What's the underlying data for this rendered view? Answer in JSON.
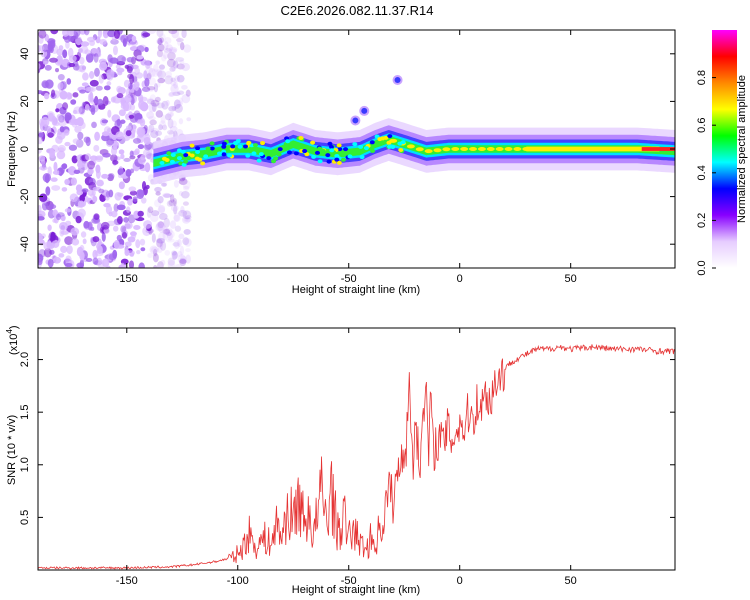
{
  "title": "C2E6.2026.082.11.37.R14",
  "colors": {
    "snr_line": "#e53333",
    "axis": "#000000",
    "background": "#ffffff"
  },
  "chart_data": [
    {
      "type": "heatmap",
      "title": "C2E6.2026.082.11.37.R14",
      "xlabel": "Height of straight line (km)",
      "ylabel": "Frequency (Hz)",
      "xlim": [
        -190,
        97
      ],
      "ylim": [
        -50,
        50
      ],
      "x_ticks": [
        -150,
        -100,
        -50,
        0,
        50
      ],
      "x_tick_labels": [
        "-150",
        "-100",
        "-50",
        "0",
        "50"
      ],
      "y_ticks": [
        -40,
        -20,
        0,
        20,
        40
      ],
      "y_tick_labels": [
        "-40",
        "-20",
        "0",
        "20",
        "40"
      ],
      "ridge": {
        "x": [
          -138,
          -125,
          -115,
          -105,
          -95,
          -85,
          -75,
          -65,
          -55,
          -45,
          -38,
          -32,
          -25,
          -15,
          -5,
          5,
          20,
          40,
          60,
          80,
          97
        ],
        "y": [
          -6,
          -3,
          -2,
          0,
          0,
          -2,
          2,
          -1,
          -2,
          -1,
          2,
          4,
          2,
          -1,
          0,
          0,
          0,
          0,
          0,
          0,
          -1
        ]
      },
      "blobs": [
        {
          "x": -47,
          "y": 12
        },
        {
          "x": -43,
          "y": 16
        },
        {
          "x": -28,
          "y": 29
        }
      ],
      "noise_region": {
        "x_range": [
          -190,
          -122
        ],
        "y_range": [
          -50,
          50
        ]
      },
      "colorbar": {
        "label": "Normalized spectral amplitude",
        "range": [
          0,
          1
        ],
        "ticks": [
          0.0,
          0.2,
          0.4,
          0.6,
          0.8
        ],
        "tick_labels": [
          "0.0",
          "0.2",
          "0.4",
          "0.6",
          "0.8"
        ],
        "colormap": [
          "#ffffff",
          "#e6ccff",
          "#8800ff",
          "#0000ff",
          "#00ffff",
          "#00ff00",
          "#ffff00",
          "#ff8800",
          "#ff0000",
          "#ff00ff"
        ]
      }
    },
    {
      "type": "line",
      "xlabel": "Height of straight line (km)",
      "ylabel": "SNR (10 * v/v)",
      "y_scale_label": "(x10",
      "y_scale_exponent": "4",
      "xlim": [
        -190,
        97
      ],
      "ylim": [
        0,
        2.3
      ],
      "x_ticks": [
        -150,
        -100,
        -50,
        0,
        50
      ],
      "x_tick_labels": [
        "-150",
        "-100",
        "-50",
        "0",
        "50"
      ],
      "y_ticks": [
        0.5,
        1.0,
        1.5,
        2.0
      ],
      "y_tick_labels": [
        "0.5",
        "1.0",
        "1.5",
        "2.0"
      ],
      "series": [
        {
          "name": "SNR",
          "x": [
            -190,
            -150,
            -130,
            -120,
            -110,
            -102,
            -98,
            -95,
            -92,
            -88,
            -85,
            -82,
            -80,
            -78,
            -75,
            -72,
            -70,
            -68,
            -66,
            -64,
            -62,
            -60,
            -58,
            -55,
            -52,
            -50,
            -48,
            -45,
            -42,
            -40,
            -38,
            -36,
            -34,
            -32,
            -30,
            -28,
            -26,
            -24,
            -23,
            -22,
            -21,
            -20,
            -18,
            -17,
            -16,
            -15,
            -14,
            -13,
            -12,
            -11,
            -10,
            -8,
            -6,
            -5,
            -4,
            -2,
            0,
            2,
            4,
            6,
            8,
            10,
            12,
            14,
            16,
            18,
            20,
            22,
            25,
            30,
            35,
            40,
            45,
            50,
            60,
            70,
            80,
            90,
            97
          ],
          "y": [
            0.02,
            0.02,
            0.03,
            0.05,
            0.08,
            0.12,
            0.2,
            0.35,
            0.22,
            0.3,
            0.25,
            0.45,
            0.3,
            0.55,
            0.5,
            0.7,
            0.4,
            0.6,
            0.3,
            0.55,
            0.75,
            0.45,
            0.8,
            0.35,
            0.5,
            0.3,
            0.4,
            0.25,
            0.2,
            0.3,
            0.25,
            0.4,
            0.5,
            0.8,
            0.65,
            0.9,
            1.1,
            1.2,
            1.8,
            1.4,
            1.0,
            1.5,
            0.9,
            1.6,
            1.3,
            1.85,
            1.0,
            1.7,
            1.1,
            1.2,
            1.25,
            1.2,
            1.3,
            1.35,
            1.25,
            1.3,
            1.4,
            1.35,
            1.5,
            1.45,
            1.6,
            1.55,
            1.7,
            1.6,
            1.8,
            1.85,
            1.9,
            1.95,
            2.0,
            2.05,
            2.1,
            2.1,
            2.12,
            2.1,
            2.12,
            2.1,
            2.1,
            2.08,
            2.08
          ]
        }
      ]
    }
  ]
}
